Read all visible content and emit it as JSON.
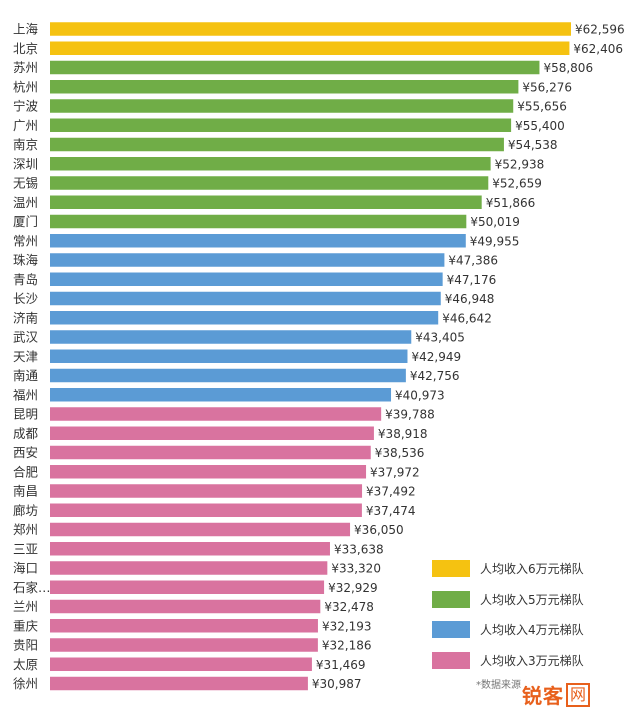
{
  "chart_data": {
    "type": "bar",
    "orientation": "horizontal",
    "categories": [
      "上海",
      "北京",
      "苏州",
      "杭州",
      "宁波",
      "广州",
      "南京",
      "深圳",
      "无锡",
      "温州",
      "厦门",
      "常州",
      "珠海",
      "青岛",
      "长沙",
      "济南",
      "武汉",
      "天津",
      "南通",
      "福州",
      "昆明",
      "成都",
      "西安",
      "合肥",
      "南昌",
      "廊坊",
      "郑州",
      "三亚",
      "海口",
      "石家…",
      "兰州",
      "重庆",
      "贵阳",
      "太原",
      "徐州"
    ],
    "values": [
      62596,
      62406,
      58806,
      56276,
      55656,
      55400,
      54538,
      52938,
      52659,
      51866,
      50019,
      49955,
      47386,
      47176,
      46948,
      46642,
      43405,
      42949,
      42756,
      40973,
      39788,
      38918,
      38536,
      37972,
      37492,
      37474,
      36050,
      33638,
      33320,
      32929,
      32478,
      32193,
      32186,
      31469,
      30987
    ],
    "value_labels": [
      "¥62,596",
      "¥62,406",
      "¥58,806",
      "¥56,276",
      "¥55,656",
      "¥55,400",
      "¥54,538",
      "¥52,938",
      "¥52,659",
      "¥51,866",
      "¥50,019",
      "¥49,955",
      "¥47,386",
      "¥47,176",
      "¥46,948",
      "¥46,642",
      "¥43,405",
      "¥42,949",
      "¥42,756",
      "¥40,973",
      "¥39,788",
      "¥38,918",
      "¥38,536",
      "¥37,972",
      "¥37,492",
      "¥37,474",
      "¥36,050",
      "¥33,638",
      "¥33,320",
      "¥32,929",
      "¥32,478",
      "¥32,193",
      "¥32,186",
      "¥31,469",
      "¥30,987"
    ],
    "tiers": [
      0,
      0,
      1,
      1,
      1,
      1,
      1,
      1,
      1,
      1,
      1,
      2,
      2,
      2,
      2,
      2,
      2,
      2,
      2,
      2,
      3,
      3,
      3,
      3,
      3,
      3,
      3,
      3,
      3,
      3,
      3,
      3,
      3,
      3,
      3
    ],
    "title": "",
    "xlabel": "",
    "ylabel": "",
    "xlim": [
      0,
      62596
    ],
    "grid": false,
    "legend_placement": "bottom-right"
  },
  "legend": [
    {
      "label": "人均收入6万元梯队",
      "color": "#f5c211"
    },
    {
      "label": "人均收入5万元梯队",
      "color": "#70ad47"
    },
    {
      "label": "人均收入4万元梯队",
      "color": "#5b9bd5"
    },
    {
      "label": "人均收入3万元梯队",
      "color": "#d9739f"
    }
  ],
  "source_note": "*数据来源",
  "watermark": {
    "logo_text": "锐客",
    "wang": "网"
  }
}
